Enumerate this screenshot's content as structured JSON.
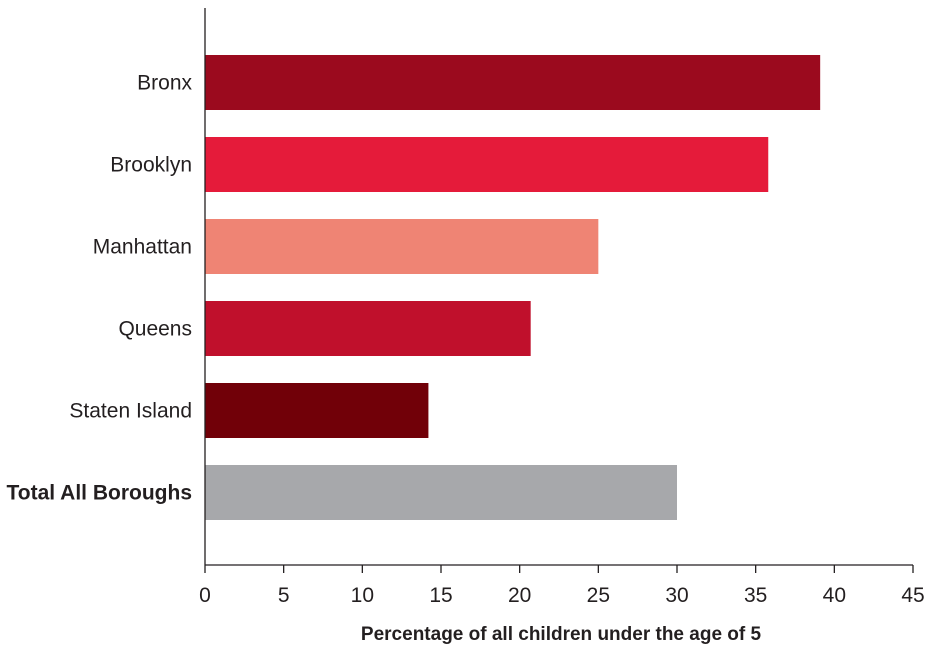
{
  "chart_data": {
    "type": "bar",
    "orientation": "horizontal",
    "categories": [
      "Bronx",
      "Brooklyn",
      "Manhattan",
      "Queens",
      "Staten Island",
      "Total All Boroughs"
    ],
    "values": [
      39.1,
      35.8,
      25.0,
      20.7,
      14.2,
      30.0
    ],
    "colors": [
      "#9b0a1e",
      "#e51b3a",
      "#ef8474",
      "#c0102c",
      "#710008",
      "#a7a8ab"
    ],
    "emphasized_category": "Total All Boroughs",
    "title": "",
    "xlabel": "Percentage of all children under the age of 5",
    "ylabel": "",
    "xlim": [
      0,
      45
    ],
    "xticks": [
      0,
      5,
      10,
      15,
      20,
      25,
      30,
      35,
      40,
      45
    ],
    "grid": false,
    "legend": "none"
  }
}
